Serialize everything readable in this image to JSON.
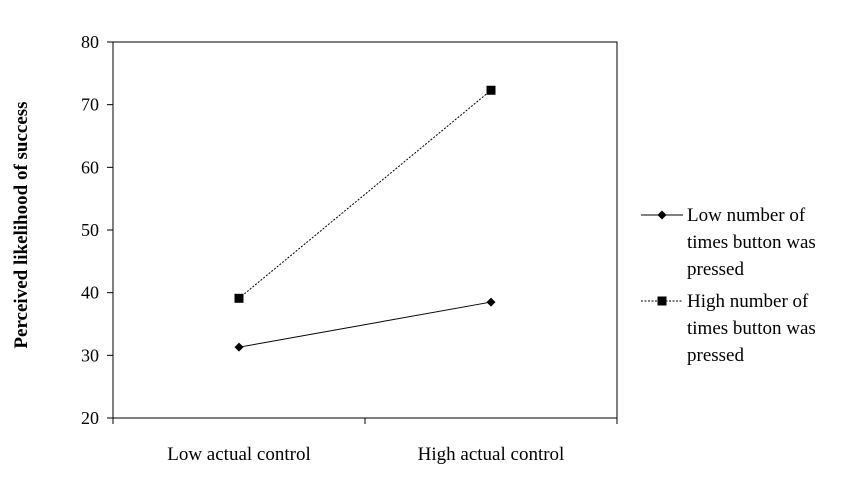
{
  "chart_data": {
    "type": "line",
    "title": "",
    "xlabel": "",
    "ylabel": "Perceived likelihood of success",
    "ylim": [
      20,
      80
    ],
    "yticks": [
      20,
      30,
      40,
      50,
      60,
      70,
      80
    ],
    "categories": [
      "Low actual control",
      "High actual control"
    ],
    "grid": false,
    "legend_position": "right",
    "series": [
      {
        "name": "Low number of times button was pressed",
        "name_lines": [
          "Low number of",
          "times button was",
          "pressed"
        ],
        "values": [
          31.3,
          38.5
        ],
        "marker": "diamond",
        "line_style": "solid",
        "color": "#000000"
      },
      {
        "name": "High number of times button was pressed",
        "name_lines": [
          "High number of",
          "times button was",
          "pressed"
        ],
        "values": [
          39.1,
          72.3
        ],
        "marker": "square",
        "line_style": "dotted",
        "color": "#000000"
      }
    ]
  }
}
